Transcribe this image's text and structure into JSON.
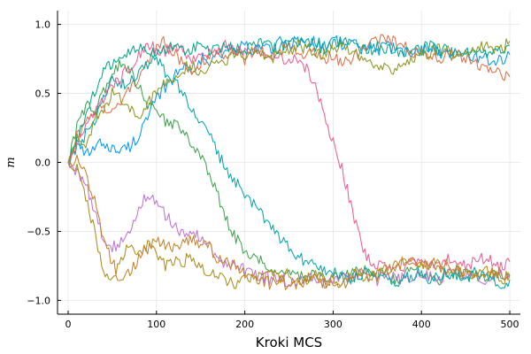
{
  "chart_data": {
    "type": "line",
    "title": "",
    "xlabel": "Kroki MCS",
    "ylabel": "m",
    "xlim": [
      -12,
      512
    ],
    "ylim": [
      -1.1,
      1.1
    ],
    "xticks": [
      0,
      100,
      200,
      300,
      400,
      500
    ],
    "xtick_labels": [
      "0",
      "100",
      "200",
      "300",
      "400",
      "500"
    ],
    "yticks": [
      -1.0,
      -0.5,
      0.0,
      0.5,
      1.0
    ],
    "ytick_labels": [
      "−1.0",
      "−0.5",
      "0.0",
      "0.5",
      "1.0"
    ],
    "grid": true,
    "legend": "none",
    "x": [
      0,
      10,
      20,
      30,
      40,
      50,
      60,
      70,
      80,
      90,
      100,
      110,
      120,
      130,
      140,
      150,
      160,
      170,
      180,
      190,
      200,
      210,
      220,
      230,
      240,
      250,
      260,
      270,
      280,
      290,
      300,
      310,
      320,
      330,
      340,
      350,
      360,
      370,
      380,
      390,
      400,
      410,
      420,
      430,
      440,
      450,
      460,
      470,
      480,
      490,
      500
    ],
    "series": [
      {
        "color": "#009af9",
        "values": [
          0.0,
          0.12,
          0.05,
          0.1,
          0.15,
          0.1,
          0.08,
          0.12,
          0.2,
          0.32,
          0.45,
          0.55,
          0.62,
          0.7,
          0.68,
          0.75,
          0.72,
          0.78,
          0.8,
          0.82,
          0.85,
          0.8,
          0.85,
          0.82,
          0.88,
          0.85,
          0.9,
          0.85,
          0.88,
          0.85,
          0.9,
          0.85,
          0.88,
          0.82,
          0.85,
          0.8,
          0.85,
          0.82,
          0.8,
          0.78,
          0.82,
          0.85,
          0.8,
          0.78,
          0.82,
          0.8,
          0.75,
          0.78,
          0.72,
          0.75,
          0.78
        ]
      },
      {
        "color": "#e26f46",
        "values": [
          0.0,
          0.18,
          0.28,
          0.35,
          0.4,
          0.38,
          0.42,
          0.55,
          0.62,
          0.72,
          0.82,
          0.88,
          0.8,
          0.72,
          0.68,
          0.72,
          0.75,
          0.8,
          0.78,
          0.82,
          0.75,
          0.78,
          0.8,
          0.76,
          0.8,
          0.85,
          0.82,
          0.78,
          0.8,
          0.75,
          0.78,
          0.72,
          0.75,
          0.8,
          0.85,
          0.88,
          0.9,
          0.88,
          0.85,
          0.8,
          0.82,
          0.78,
          0.75,
          0.8,
          0.78,
          0.75,
          0.72,
          0.7,
          0.68,
          0.65,
          0.62
        ]
      },
      {
        "color": "#3da44d",
        "values": [
          0.0,
          0.25,
          0.42,
          0.38,
          0.5,
          0.65,
          0.72,
          0.68,
          0.55,
          0.42,
          0.35,
          0.3,
          0.28,
          0.22,
          0.15,
          0.05,
          -0.1,
          -0.25,
          -0.42,
          -0.55,
          -0.65,
          -0.7,
          -0.72,
          -0.78,
          -0.8,
          -0.78,
          -0.82,
          -0.85,
          -0.8,
          -0.82,
          -0.85,
          -0.8,
          -0.82,
          -0.78,
          -0.8,
          -0.82,
          -0.8,
          -0.85,
          -0.82,
          -0.78,
          -0.8,
          -0.82,
          -0.85,
          -0.8,
          -0.82,
          -0.8,
          -0.82,
          -0.85,
          -0.82,
          -0.8,
          -0.82
        ]
      },
      {
        "color": "#c271d2",
        "values": [
          0.0,
          -0.08,
          -0.15,
          -0.35,
          -0.55,
          -0.62,
          -0.58,
          -0.48,
          -0.32,
          -0.25,
          -0.3,
          -0.38,
          -0.45,
          -0.52,
          -0.48,
          -0.55,
          -0.62,
          -0.7,
          -0.75,
          -0.72,
          -0.78,
          -0.8,
          -0.82,
          -0.85,
          -0.82,
          -0.88,
          -0.85,
          -0.82,
          -0.85,
          -0.88,
          -0.85,
          -0.82,
          -0.85,
          -0.8,
          -0.82,
          -0.85,
          -0.8,
          -0.82,
          -0.85,
          -0.82,
          -0.8,
          -0.82,
          -0.85,
          -0.8,
          -0.78,
          -0.82,
          -0.8,
          -0.85,
          -0.82,
          -0.8,
          -0.82
        ]
      },
      {
        "color": "#ac8d18",
        "values": [
          0.0,
          -0.05,
          -0.25,
          -0.5,
          -0.8,
          -0.88,
          -0.7,
          -0.58,
          -0.65,
          -0.6,
          -0.68,
          -0.75,
          -0.7,
          -0.72,
          -0.68,
          -0.75,
          -0.8,
          -0.82,
          -0.85,
          -0.88,
          -0.82,
          -0.85,
          -0.8,
          -0.82,
          -0.85,
          -0.8,
          -0.88,
          -0.85,
          -0.82,
          -0.88,
          -0.85,
          -0.9,
          -0.85,
          -0.82,
          -0.85,
          -0.8,
          -0.78,
          -0.75,
          -0.72,
          -0.7,
          -0.75,
          -0.72,
          -0.75,
          -0.8,
          -0.78,
          -0.82,
          -0.8,
          -0.78,
          -0.82,
          -0.85,
          -0.82
        ]
      },
      {
        "color": "#00a9ad",
        "values": [
          0.0,
          0.1,
          0.2,
          0.3,
          0.45,
          0.6,
          0.55,
          0.6,
          0.65,
          0.7,
          0.75,
          0.65,
          0.6,
          0.5,
          0.4,
          0.3,
          0.2,
          0.05,
          -0.05,
          -0.15,
          -0.22,
          -0.3,
          -0.38,
          -0.45,
          -0.55,
          -0.6,
          -0.68,
          -0.72,
          -0.75,
          -0.78,
          -0.8,
          -0.82,
          -0.85,
          -0.82,
          -0.8,
          -0.85,
          -0.82,
          -0.88,
          -0.85,
          -0.82,
          -0.8,
          -0.85,
          -0.82,
          -0.8,
          -0.82,
          -0.85,
          -0.8,
          -0.82,
          -0.85,
          -0.88,
          -0.85
        ]
      },
      {
        "color": "#ed5e93",
        "values": [
          0.0,
          0.12,
          0.25,
          0.35,
          0.45,
          0.55,
          0.62,
          0.7,
          0.78,
          0.85,
          0.82,
          0.8,
          0.85,
          0.8,
          0.75,
          0.78,
          0.8,
          0.82,
          0.85,
          0.8,
          0.82,
          0.85,
          0.8,
          0.78,
          0.75,
          0.72,
          0.75,
          0.68,
          0.55,
          0.35,
          0.15,
          -0.05,
          -0.3,
          -0.55,
          -0.7,
          -0.75,
          -0.72,
          -0.78,
          -0.75,
          -0.72,
          -0.7,
          -0.72,
          -0.75,
          -0.7,
          -0.72,
          -0.75,
          -0.72,
          -0.7,
          -0.72,
          -0.75,
          -0.72
        ]
      },
      {
        "color": "#c68225",
        "values": [
          0.0,
          0.02,
          -0.08,
          -0.28,
          -0.55,
          -0.72,
          -0.88,
          -0.8,
          -0.7,
          -0.62,
          -0.58,
          -0.6,
          -0.62,
          -0.58,
          -0.55,
          -0.6,
          -0.62,
          -0.7,
          -0.72,
          -0.75,
          -0.8,
          -0.82,
          -0.85,
          -0.88,
          -0.85,
          -0.9,
          -0.88,
          -0.85,
          -0.82,
          -0.85,
          -0.88,
          -0.85,
          -0.82,
          -0.8,
          -0.78,
          -0.82,
          -0.78,
          -0.75,
          -0.72,
          -0.7,
          -0.72,
          -0.75,
          -0.72,
          -0.75,
          -0.78,
          -0.8,
          -0.82,
          -0.8,
          -0.78,
          -0.8,
          -0.82
        ]
      },
      {
        "color": "#00a98d",
        "values": [
          0.0,
          0.15,
          0.35,
          0.5,
          0.65,
          0.72,
          0.75,
          0.8,
          0.85,
          0.8,
          0.78,
          0.82,
          0.85,
          0.8,
          0.82,
          0.85,
          0.8,
          0.82,
          0.85,
          0.82,
          0.8,
          0.85,
          0.88,
          0.85,
          0.82,
          0.88,
          0.85,
          0.9,
          0.85,
          0.82,
          0.85,
          0.88,
          0.85,
          0.82,
          0.8,
          0.85,
          0.82,
          0.8,
          0.78,
          0.8,
          0.82,
          0.85,
          0.8,
          0.82,
          0.78,
          0.8,
          0.82,
          0.78,
          0.8,
          0.82,
          0.85
        ]
      },
      {
        "color": "#8e971e",
        "values": [
          0.0,
          0.18,
          0.12,
          0.3,
          0.38,
          0.5,
          0.45,
          0.38,
          0.35,
          0.42,
          0.5,
          0.58,
          0.62,
          0.68,
          0.7,
          0.65,
          0.7,
          0.72,
          0.75,
          0.8,
          0.78,
          0.82,
          0.8,
          0.75,
          0.78,
          0.8,
          0.85,
          0.82,
          0.8,
          0.78,
          0.82,
          0.85,
          0.8,
          0.78,
          0.72,
          0.7,
          0.68,
          0.65,
          0.72,
          0.75,
          0.78,
          0.8,
          0.82,
          0.8,
          0.75,
          0.78,
          0.82,
          0.85,
          0.8,
          0.82,
          0.88
        ]
      }
    ]
  }
}
